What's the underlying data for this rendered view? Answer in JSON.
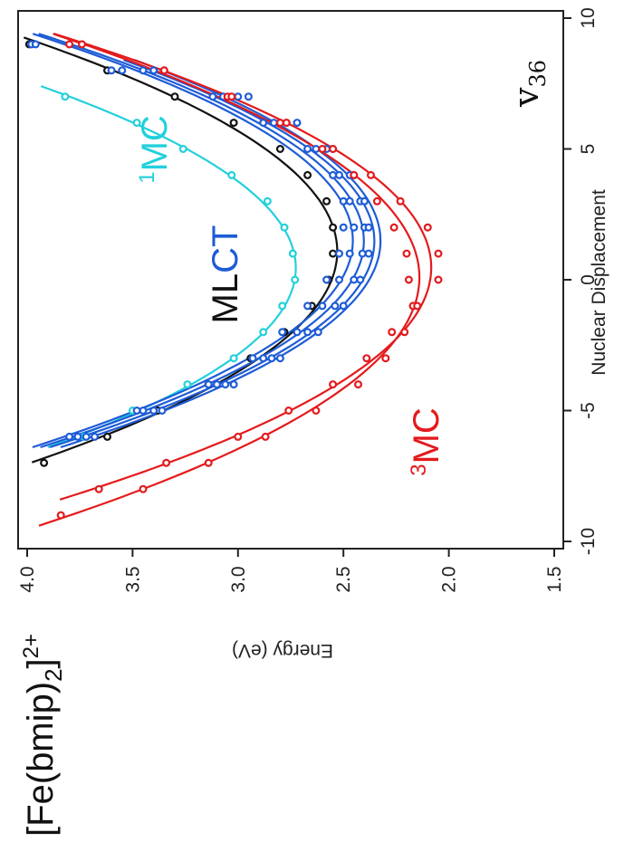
{
  "compound": {
    "base": "[Fe(bmip)",
    "sub": "2",
    "close": "]",
    "sup": "2+"
  },
  "mode_label": {
    "symbol": "v",
    "sub": "36"
  },
  "chart_data": {
    "type": "line",
    "orientation": "rotated 90° counterclockwise (x axis runs along the right side, y axis along the bottom)",
    "xlabel": "Nuclear Displacement",
    "ylabel": "Energy (eV)",
    "xlim": [
      -10,
      10
    ],
    "ylim": [
      1.5,
      4.0
    ],
    "xticks": [
      -10,
      -5,
      0,
      5,
      10
    ],
    "yticks": [
      1.5,
      2.0,
      2.5,
      3.0,
      3.5,
      4.0
    ],
    "ytick_labels": [
      "1.5",
      "2.0",
      "2.5",
      "3.0",
      "3.5",
      "4.0"
    ],
    "colors": {
      "1MC": "#22d0dc",
      "MLCT": "#111111",
      "MLCT_blue": "#1e5cd6",
      "3MC": "#e41a1c"
    },
    "annotations": [
      {
        "sup": "1",
        "text": "MC",
        "color": "#22d0dc"
      },
      {
        "text_dark": "ML",
        "text_blue": "CT"
      },
      {
        "sup": "3",
        "text": "MC",
        "color": "#e41a1c"
      }
    ],
    "series": [
      {
        "group": "1MC",
        "color": "#22d0dc",
        "x": [
          -6,
          -5,
          -4,
          -3,
          -2,
          -1,
          0,
          1,
          2,
          3,
          4,
          5,
          6,
          7
        ],
        "y": [
          3.73,
          3.5,
          3.24,
          3.02,
          2.88,
          2.79,
          2.73,
          2.74,
          2.78,
          2.86,
          3.03,
          3.26,
          3.48,
          3.82
        ]
      },
      {
        "group": "MLCT",
        "color": "#111111",
        "x": [
          -7,
          -6,
          -5,
          -4,
          -3,
          -2,
          -1,
          0,
          1,
          2,
          3,
          4,
          5,
          6,
          7,
          8,
          9
        ],
        "y": [
          3.92,
          3.62,
          3.38,
          3.14,
          2.94,
          2.78,
          2.65,
          2.57,
          2.55,
          2.55,
          2.58,
          2.67,
          2.8,
          3.02,
          3.3,
          3.62,
          3.99
        ]
      },
      {
        "group": "MLCT",
        "color": "#1e5cd6",
        "x": [
          -6,
          -5,
          -4,
          -3,
          -2,
          -1,
          0,
          1,
          2,
          3,
          4,
          5,
          6,
          7,
          8,
          9
        ],
        "y": [
          3.8,
          3.48,
          3.14,
          2.93,
          2.79,
          2.67,
          2.58,
          2.52,
          2.5,
          2.5,
          2.55,
          2.67,
          2.88,
          3.12,
          3.45,
          3.98
        ]
      },
      {
        "group": "MLCT",
        "color": "#1e5cd6",
        "x": [
          -6,
          -5,
          -4,
          -3,
          -2,
          -1,
          0,
          1,
          2,
          3,
          4,
          5,
          6,
          7,
          8,
          9
        ],
        "y": [
          3.76,
          3.45,
          3.1,
          2.88,
          2.72,
          2.6,
          2.52,
          2.47,
          2.45,
          2.47,
          2.52,
          2.63,
          2.83,
          3.07,
          3.4,
          3.96
        ]
      },
      {
        "group": "MLCT",
        "color": "#1e5cd6",
        "x": [
          -6,
          -5,
          -4,
          -3,
          -2,
          -1,
          0,
          1,
          2,
          3,
          4,
          5,
          6,
          7,
          8
        ],
        "y": [
          3.72,
          3.4,
          3.06,
          2.84,
          2.67,
          2.54,
          2.45,
          2.41,
          2.4,
          2.42,
          2.47,
          2.58,
          2.77,
          3.0,
          3.6
        ]
      },
      {
        "group": "MLCT",
        "color": "#1e5cd6",
        "x": [
          -6,
          -5,
          -4,
          -3,
          -2,
          -1,
          0,
          1,
          2,
          3,
          4,
          5,
          6,
          7,
          8
        ],
        "y": [
          3.68,
          3.36,
          3.02,
          2.8,
          2.62,
          2.5,
          2.42,
          2.38,
          2.38,
          2.4,
          2.45,
          2.55,
          2.72,
          2.95,
          3.55
        ]
      },
      {
        "group": "3MC",
        "color": "#e41a1c",
        "x": [
          -9,
          -8,
          -7,
          -6,
          -5,
          -4,
          -3,
          -2,
          -1,
          0,
          1,
          2,
          3,
          4,
          5,
          6,
          7,
          8,
          9
        ],
        "y": [
          3.84,
          3.45,
          3.14,
          2.87,
          2.63,
          2.43,
          2.3,
          2.21,
          2.17,
          2.19,
          2.2,
          2.26,
          2.34,
          2.45,
          2.6,
          2.8,
          3.05,
          3.35,
          3.8
        ]
      },
      {
        "group": "3MC",
        "color": "#e41a1c",
        "x": [
          -8,
          -7,
          -6,
          -5,
          -4,
          -3,
          -2,
          -1,
          0,
          1,
          2,
          3,
          4,
          5,
          6,
          7,
          8,
          9
        ],
        "y": [
          3.66,
          3.34,
          3.0,
          2.76,
          2.55,
          2.39,
          2.27,
          2.15,
          2.05,
          2.05,
          2.1,
          2.23,
          2.37,
          2.55,
          2.77,
          3.03,
          3.35,
          3.74
        ]
      }
    ]
  }
}
